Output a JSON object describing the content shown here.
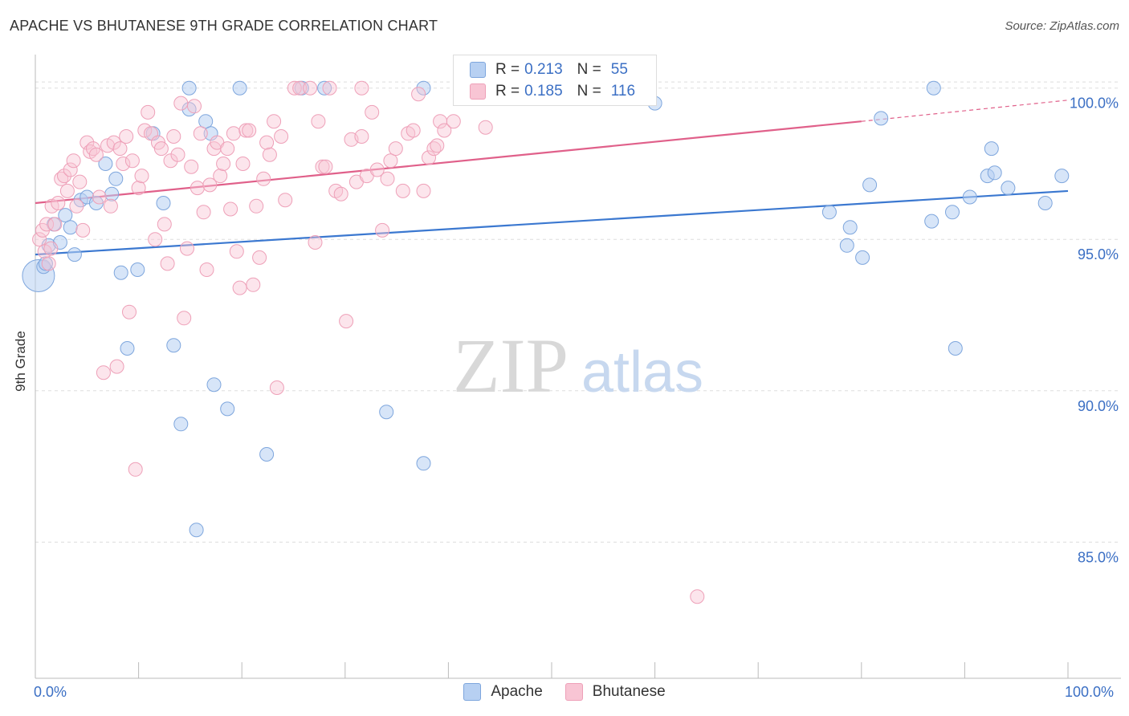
{
  "title": "APACHE VS BHUTANESE 9TH GRADE CORRELATION CHART",
  "source": "Source: ZipAtlas.com",
  "watermark": {
    "zip": "ZIP",
    "atlas": "atlas"
  },
  "legend_top": {
    "rows": [
      {
        "r_label": "R =",
        "r_value": "0.213",
        "n_label": "N =",
        "n_value": "55",
        "color": "#a9c8f0"
      },
      {
        "r_label": "R =",
        "r_value": "0.185",
        "n_label": "N =",
        "n_value": "116",
        "color": "#f6b7cb"
      }
    ]
  },
  "legend_bottom": [
    {
      "label": "Apache",
      "color": "#b7d0f2"
    },
    {
      "label": "Bhutanese",
      "color": "#f8c5d4"
    }
  ],
  "chart_data": {
    "type": "scatter",
    "title": "APACHE VS BHUTANESE 9TH GRADE CORRELATION CHART",
    "xlabel": "",
    "ylabel": "9th Grade",
    "xlim": [
      0,
      100
    ],
    "ylim": [
      80.5,
      101.0
    ],
    "x_tick_labels": [
      "0.0%",
      "100.0%"
    ],
    "y_ticks": [
      85,
      90,
      95,
      100
    ],
    "y_tick_labels": [
      "85.0%",
      "90.0%",
      "95.0%",
      "100.0%"
    ],
    "grid": true,
    "colors": {
      "apache": "#3b78d0",
      "bhutanese": "#e0608a"
    },
    "series": [
      {
        "name": "Apache",
        "r": 0.213,
        "n": 55,
        "trend": {
          "x0": 0,
          "y0": 94.5,
          "x1": 100,
          "y1": 96.6
        },
        "points": [
          [
            0.3,
            93.8
          ],
          [
            0.8,
            94.1
          ],
          [
            1.3,
            94.8
          ],
          [
            1.8,
            95.5
          ],
          [
            2.4,
            94.9
          ],
          [
            2.9,
            95.8
          ],
          [
            3.4,
            95.4
          ],
          [
            3.8,
            94.5
          ],
          [
            4.4,
            96.3
          ],
          [
            5.0,
            96.4
          ],
          [
            5.9,
            96.2
          ],
          [
            6.8,
            97.5
          ],
          [
            7.4,
            96.5
          ],
          [
            7.8,
            97.0
          ],
          [
            8.3,
            93.9
          ],
          [
            8.9,
            91.4
          ],
          [
            9.9,
            94.0
          ],
          [
            11.4,
            98.5
          ],
          [
            12.4,
            96.2
          ],
          [
            13.4,
            91.5
          ],
          [
            14.1,
            88.9
          ],
          [
            14.9,
            99.3
          ],
          [
            15.6,
            85.4
          ],
          [
            16.5,
            98.9
          ],
          [
            17.0,
            98.5
          ],
          [
            17.3,
            90.2
          ],
          [
            18.6,
            89.4
          ],
          [
            19.8,
            100.0
          ],
          [
            22.4,
            87.9
          ],
          [
            25.8,
            100.0
          ],
          [
            28.0,
            100.0
          ],
          [
            34.0,
            89.3
          ],
          [
            37.6,
            87.6
          ],
          [
            37.6,
            100.0
          ],
          [
            14.9,
            100.0
          ],
          [
            1.0,
            94.2
          ],
          [
            55.1,
            100.0
          ],
          [
            60.0,
            99.5
          ],
          [
            76.9,
            95.9
          ],
          [
            78.6,
            94.8
          ],
          [
            78.9,
            95.4
          ],
          [
            80.1,
            94.4
          ],
          [
            80.8,
            96.8
          ],
          [
            81.9,
            99.0
          ],
          [
            86.8,
            95.6
          ],
          [
            87.0,
            100.0
          ],
          [
            88.8,
            95.9
          ],
          [
            89.1,
            91.4
          ],
          [
            90.5,
            96.4
          ],
          [
            92.2,
            97.1
          ],
          [
            92.6,
            98.0
          ],
          [
            92.9,
            97.2
          ],
          [
            94.2,
            96.7
          ],
          [
            97.8,
            96.2
          ],
          [
            99.4,
            97.1
          ]
        ]
      },
      {
        "name": "Bhutanese",
        "r": 0.185,
        "n": 116,
        "trend": {
          "x0": 0,
          "y0": 96.2,
          "x1": 80,
          "y1": 98.9
        },
        "trend_dashed_to": {
          "x": 100,
          "y": 99.6
        },
        "points": [
          [
            0.4,
            95.0
          ],
          [
            0.7,
            95.3
          ],
          [
            0.9,
            94.6
          ],
          [
            1.1,
            95.5
          ],
          [
            1.3,
            94.2
          ],
          [
            1.6,
            96.1
          ],
          [
            1.9,
            95.5
          ],
          [
            2.2,
            96.2
          ],
          [
            2.5,
            97.0
          ],
          [
            2.8,
            97.1
          ],
          [
            3.1,
            96.6
          ],
          [
            3.4,
            97.3
          ],
          [
            3.7,
            97.6
          ],
          [
            4.0,
            96.1
          ],
          [
            4.3,
            96.9
          ],
          [
            4.6,
            95.3
          ],
          [
            5.0,
            98.2
          ],
          [
            5.3,
            97.9
          ],
          [
            5.6,
            98.0
          ],
          [
            5.9,
            97.8
          ],
          [
            6.2,
            96.4
          ],
          [
            6.6,
            90.6
          ],
          [
            7.0,
            98.1
          ],
          [
            7.3,
            96.1
          ],
          [
            7.6,
            98.2
          ],
          [
            7.9,
            90.8
          ],
          [
            8.2,
            98.0
          ],
          [
            8.5,
            97.5
          ],
          [
            8.8,
            98.4
          ],
          [
            9.1,
            92.6
          ],
          [
            9.4,
            97.6
          ],
          [
            9.7,
            87.4
          ],
          [
            10.0,
            96.7
          ],
          [
            10.3,
            97.1
          ],
          [
            10.6,
            98.6
          ],
          [
            10.9,
            99.2
          ],
          [
            11.2,
            98.5
          ],
          [
            11.6,
            95.0
          ],
          [
            11.9,
            98.2
          ],
          [
            12.2,
            98.0
          ],
          [
            12.5,
            95.5
          ],
          [
            12.8,
            94.2
          ],
          [
            13.1,
            97.6
          ],
          [
            13.4,
            98.4
          ],
          [
            13.8,
            97.8
          ],
          [
            14.1,
            99.5
          ],
          [
            14.4,
            92.4
          ],
          [
            14.7,
            94.7
          ],
          [
            15.1,
            97.4
          ],
          [
            15.4,
            99.4
          ],
          [
            15.7,
            96.7
          ],
          [
            16.0,
            98.5
          ],
          [
            16.3,
            95.9
          ],
          [
            16.6,
            94.0
          ],
          [
            16.9,
            96.8
          ],
          [
            17.3,
            98.0
          ],
          [
            17.6,
            98.2
          ],
          [
            17.9,
            97.1
          ],
          [
            18.2,
            97.5
          ],
          [
            18.6,
            98.0
          ],
          [
            18.9,
            96.0
          ],
          [
            19.2,
            98.5
          ],
          [
            19.5,
            94.6
          ],
          [
            19.8,
            93.4
          ],
          [
            20.1,
            97.5
          ],
          [
            20.4,
            98.6
          ],
          [
            20.7,
            98.6
          ],
          [
            21.1,
            93.5
          ],
          [
            21.4,
            96.1
          ],
          [
            21.7,
            94.4
          ],
          [
            22.1,
            97.0
          ],
          [
            22.4,
            98.2
          ],
          [
            22.7,
            97.8
          ],
          [
            23.1,
            98.9
          ],
          [
            23.4,
            90.1
          ],
          [
            23.8,
            98.4
          ],
          [
            24.2,
            96.3
          ],
          [
            25.1,
            100.0
          ],
          [
            25.6,
            100.0
          ],
          [
            26.6,
            100.0
          ],
          [
            27.1,
            94.9
          ],
          [
            27.4,
            98.9
          ],
          [
            27.8,
            97.4
          ],
          [
            28.1,
            97.4
          ],
          [
            28.5,
            100.0
          ],
          [
            29.1,
            96.6
          ],
          [
            29.6,
            96.5
          ],
          [
            30.1,
            92.3
          ],
          [
            30.6,
            98.3
          ],
          [
            31.1,
            96.9
          ],
          [
            31.6,
            98.4
          ],
          [
            32.1,
            97.1
          ],
          [
            32.6,
            99.2
          ],
          [
            33.1,
            97.3
          ],
          [
            33.6,
            95.3
          ],
          [
            34.1,
            97.0
          ],
          [
            34.4,
            97.6
          ],
          [
            34.9,
            98.0
          ],
          [
            35.6,
            96.6
          ],
          [
            36.1,
            98.5
          ],
          [
            36.6,
            98.6
          ],
          [
            37.1,
            99.8
          ],
          [
            37.6,
            96.6
          ],
          [
            38.1,
            97.7
          ],
          [
            38.6,
            98.0
          ],
          [
            38.9,
            98.1
          ],
          [
            39.2,
            98.9
          ],
          [
            39.6,
            98.6
          ],
          [
            40.5,
            98.9
          ],
          [
            31.6,
            100.0
          ],
          [
            43.6,
            98.7
          ],
          [
            47.1,
            100.0
          ],
          [
            52.1,
            100.0
          ],
          [
            59.1,
            100.0
          ],
          [
            64.1,
            83.2
          ],
          [
            1.5,
            94.7
          ]
        ]
      }
    ]
  }
}
